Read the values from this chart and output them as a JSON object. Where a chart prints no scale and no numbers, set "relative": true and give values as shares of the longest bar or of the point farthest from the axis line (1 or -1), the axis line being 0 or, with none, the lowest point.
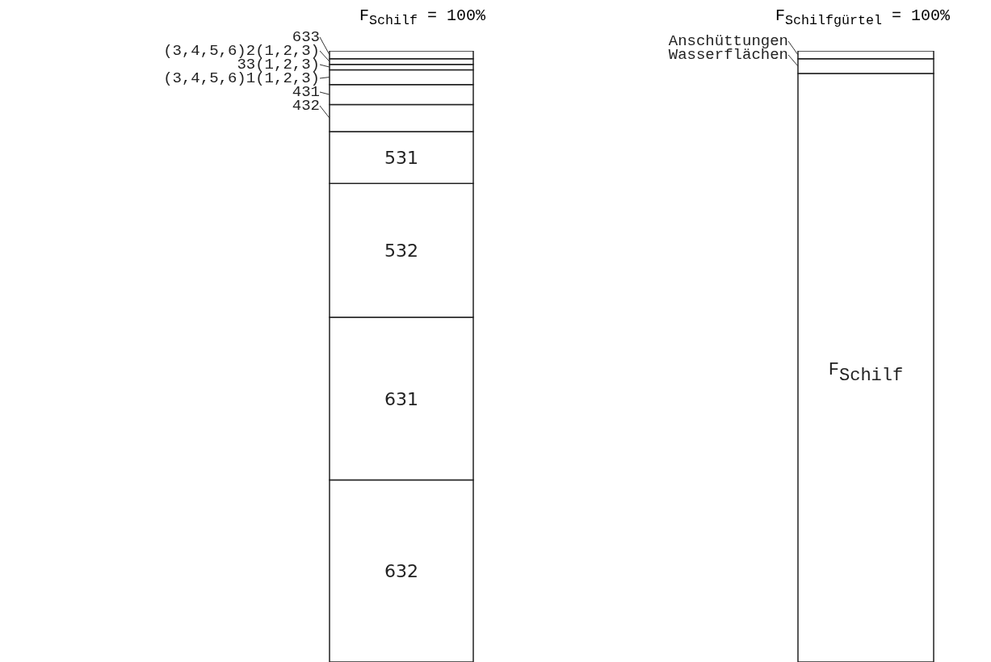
{
  "chart_data": [
    {
      "type": "bar",
      "title": "F$_{Schilf}$ = 100%",
      "stacked": true,
      "relative": true,
      "categories": [
        null
      ],
      "tick_labels": false,
      "series": [
        {
          "name": "632",
          "color": "#ffffff",
          "values": [
            0.298
          ]
        },
        {
          "name": "631",
          "color": "#ffffff",
          "values": [
            0.266
          ]
        },
        {
          "name": "532",
          "color": "#ffffff",
          "values": [
            0.219
          ]
        },
        {
          "name": "531",
          "color": "#ffffff",
          "values": [
            0.085
          ]
        },
        {
          "name": "432",
          "color": "#ffffff",
          "values": [
            0.044
          ]
        },
        {
          "name": "431",
          "color": "#ffffff",
          "values": [
            0.033
          ]
        },
        {
          "name": "(3,4,5,6)1(1,2,3)",
          "color": "#ffffff",
          "values": [
            0.024
          ]
        },
        {
          "name": "33(1,2,3)",
          "color": "#ffffff",
          "values": [
            0.009
          ]
        },
        {
          "name": "(3,4,5,6)2(1,2,3)",
          "color": "#ffffff",
          "values": [
            0.009
          ]
        },
        {
          "name": "633",
          "color": "#ffffff",
          "values": [
            0.013
          ]
        }
      ]
    },
    {
      "type": "bar",
      "title": "F$_{Schilfgürtel}$ = 100%",
      "stacked": true,
      "relative": true,
      "categories": [
        null
      ],
      "tick_labels": false,
      "series": [
        {
          "name": "F$_{Schilf}$",
          "color": "#ffffff",
          "values": [
            0.963
          ]
        },
        {
          "name": "Wasserflächen",
          "color": "#ffffff",
          "values": [
            0.024
          ]
        },
        {
          "name": "Anschüttungen",
          "color": "#ffffff",
          "values": [
            0.013
          ]
        }
      ]
    }
  ]
}
